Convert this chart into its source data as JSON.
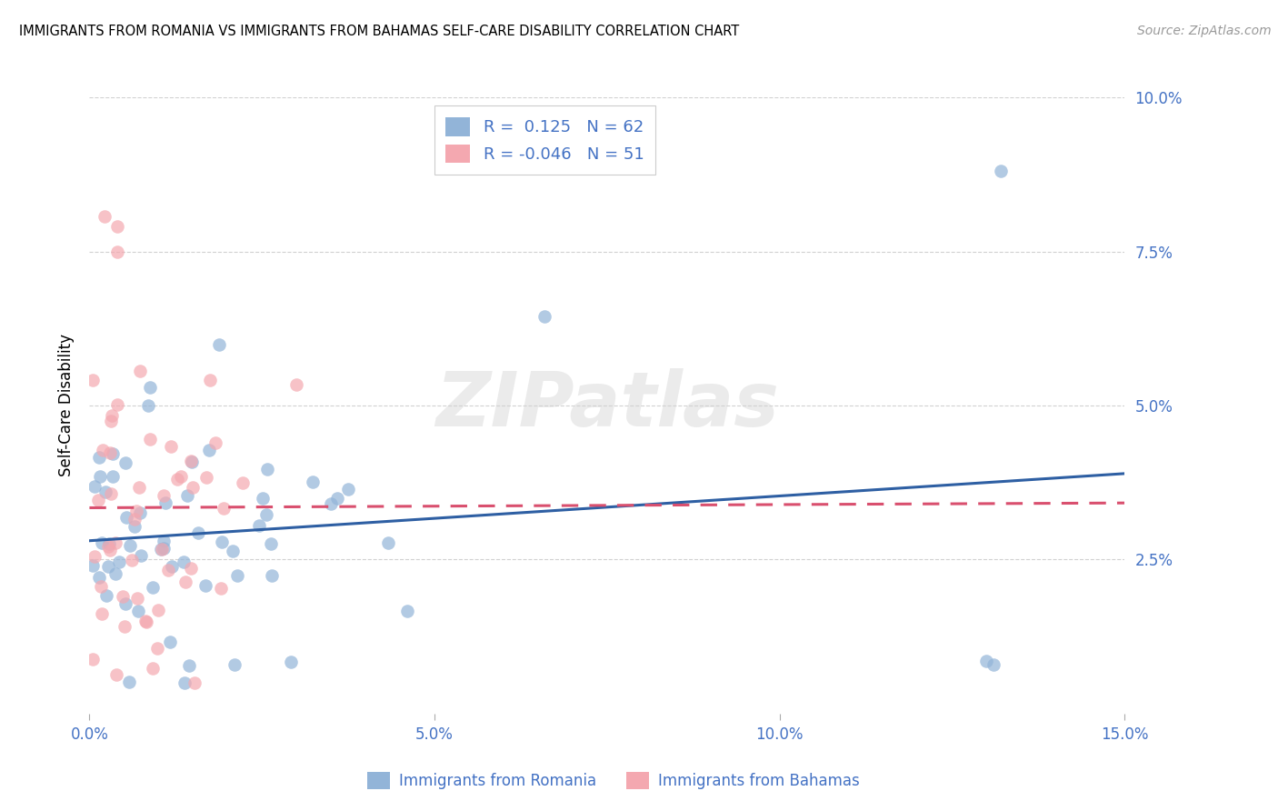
{
  "title": "IMMIGRANTS FROM ROMANIA VS IMMIGRANTS FROM BAHAMAS SELF-CARE DISABILITY CORRELATION CHART",
  "source": "Source: ZipAtlas.com",
  "xlabel_romania": "Immigrants from Romania",
  "xlabel_bahamas": "Immigrants from Bahamas",
  "ylabel": "Self-Care Disability",
  "xlim": [
    0.0,
    0.15
  ],
  "ylim": [
    0.0,
    0.1
  ],
  "ytick_vals": [
    0.025,
    0.05,
    0.075,
    0.1
  ],
  "xtick_vals": [
    0.0,
    0.05,
    0.1,
    0.15
  ],
  "ytick_labels": [
    "2.5%",
    "5.0%",
    "7.5%",
    "10.0%"
  ],
  "xtick_labels": [
    "0.0%",
    "5.0%",
    "10.0%",
    "15.0%"
  ],
  "romania_R": 0.125,
  "romania_N": 62,
  "bahamas_R": -0.046,
  "bahamas_N": 51,
  "romania_color": "#92B4D8",
  "bahamas_color": "#F4A8B0",
  "romania_line_color": "#2E5FA3",
  "bahamas_line_color": "#D94F6E",
  "watermark": "ZIPatlas",
  "background_color": "#ffffff",
  "grid_color": "#cccccc",
  "tick_color": "#4472C4",
  "title_color": "#000000",
  "source_color": "#999999"
}
